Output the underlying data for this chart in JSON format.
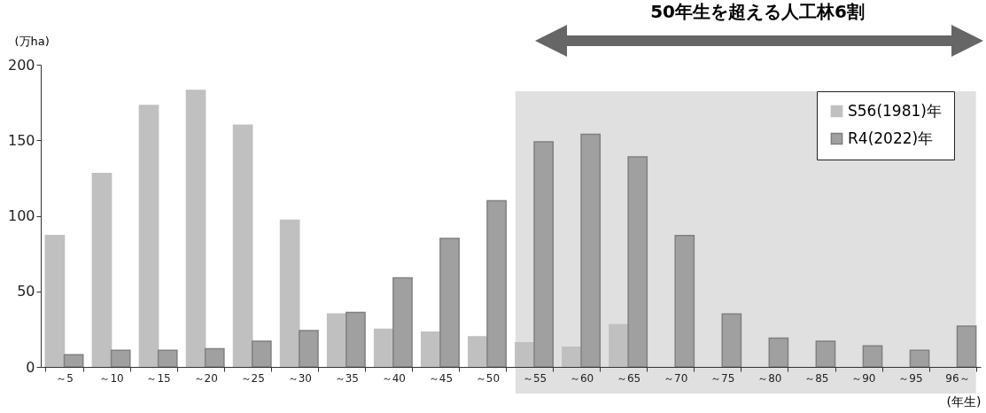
{
  "chart_data": {
    "type": "bar",
    "title": "50年生を超える人工林6割",
    "ylabel": "(万ha)",
    "xlabel": "(年生)",
    "categories": [
      "～5",
      "～10",
      "～15",
      "～20",
      "～25",
      "～30",
      "～35",
      "～40",
      "～45",
      "～50",
      "～55",
      "～60",
      "～65",
      "～70",
      "～75",
      "～80",
      "～85",
      "～90",
      "～95",
      "96～"
    ],
    "series": [
      {
        "name": "S56(1981)年",
        "color": "#c0c0c0",
        "values": [
          87,
          128,
          173,
          183,
          160,
          97,
          35,
          25,
          23,
          20,
          16,
          13,
          28,
          null,
          null,
          null,
          null,
          null,
          null,
          null
        ]
      },
      {
        "name": "R4(2022)年",
        "color": "#a0a0a0",
        "values": [
          8,
          11,
          11,
          12,
          17,
          24,
          36,
          59,
          85,
          110,
          149,
          154,
          139,
          87,
          35,
          19,
          17,
          14,
          11,
          27
        ]
      }
    ],
    "ylim": [
      0,
      200
    ],
    "yticks": [
      0,
      50,
      100,
      150,
      200
    ],
    "bands": [
      {
        "axis": "x",
        "from": "～55",
        "to": "96～",
        "color": "#e0e0e0"
      }
    ],
    "legend": "top right",
    "grid": false
  }
}
